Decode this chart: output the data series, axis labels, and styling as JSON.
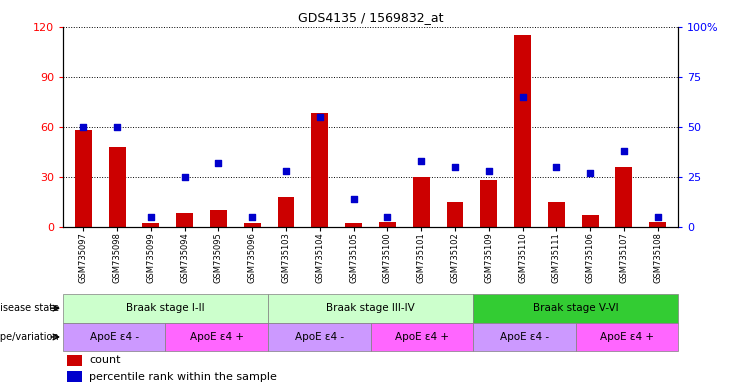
{
  "title": "GDS4135 / 1569832_at",
  "samples": [
    "GSM735097",
    "GSM735098",
    "GSM735099",
    "GSM735094",
    "GSM735095",
    "GSM735096",
    "GSM735103",
    "GSM735104",
    "GSM735105",
    "GSM735100",
    "GSM735101",
    "GSM735102",
    "GSM735109",
    "GSM735110",
    "GSM735111",
    "GSM735106",
    "GSM735107",
    "GSM735108"
  ],
  "counts": [
    58,
    48,
    2,
    8,
    10,
    2,
    18,
    68,
    2,
    3,
    30,
    15,
    28,
    115,
    15,
    7,
    36,
    3
  ],
  "percentile_ranks": [
    50,
    50,
    5,
    25,
    32,
    5,
    28,
    55,
    14,
    5,
    33,
    30,
    28,
    65,
    30,
    27,
    38,
    5
  ],
  "ylim_left": [
    0,
    120
  ],
  "ylim_right": [
    0,
    100
  ],
  "yticks_left": [
    0,
    30,
    60,
    90,
    120
  ],
  "yticks_right": [
    0,
    25,
    50,
    75,
    100
  ],
  "bar_color": "#cc0000",
  "dot_color": "#0000cc",
  "background_color": "#ffffff",
  "disease_state_groups": [
    {
      "label": "Braak stage I-II",
      "start": 0,
      "end": 6,
      "color": "#ccffcc"
    },
    {
      "label": "Braak stage III-IV",
      "start": 6,
      "end": 12,
      "color": "#ccffcc"
    },
    {
      "label": "Braak stage V-VI",
      "start": 12,
      "end": 18,
      "color": "#33cc33"
    }
  ],
  "genotype_groups": [
    {
      "label": "ApoE ε4 -",
      "start": 0,
      "end": 3,
      "color": "#cc99ff"
    },
    {
      "label": "ApoE ε4 +",
      "start": 3,
      "end": 6,
      "color": "#ff66ff"
    },
    {
      "label": "ApoE ε4 -",
      "start": 6,
      "end": 9,
      "color": "#cc99ff"
    },
    {
      "label": "ApoE ε4 +",
      "start": 9,
      "end": 12,
      "color": "#ff66ff"
    },
    {
      "label": "ApoE ε4 -",
      "start": 12,
      "end": 15,
      "color": "#cc99ff"
    },
    {
      "label": "ApoE ε4 +",
      "start": 15,
      "end": 18,
      "color": "#ff66ff"
    }
  ],
  "disease_label": "disease state",
  "genotype_label": "genotype/variation",
  "legend_count": "count",
  "legend_percentile": "percentile rank within the sample",
  "bar_width": 0.5
}
